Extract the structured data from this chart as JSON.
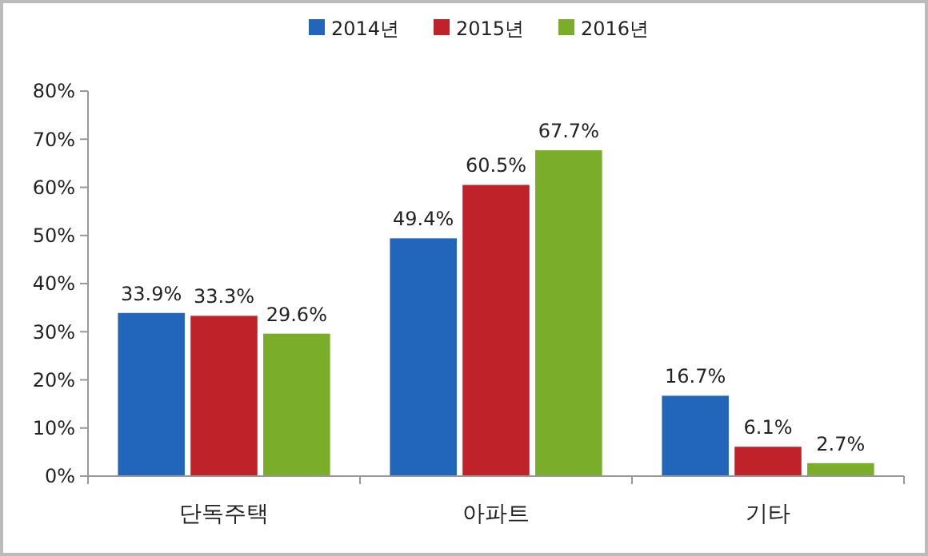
{
  "chart_data": {
    "type": "bar",
    "categories": [
      "단독주택",
      "아파트",
      "기타"
    ],
    "series": [
      {
        "name": "2014년",
        "color": "#2266bb",
        "values": [
          33.9,
          49.4,
          16.7
        ],
        "value_labels": [
          "33.9%",
          "49.4%",
          "16.7%"
        ]
      },
      {
        "name": "2015년",
        "color": "#c0222a",
        "values": [
          33.3,
          60.5,
          6.1
        ],
        "value_labels": [
          "33.3%",
          "60.5%",
          "6.1%"
        ]
      },
      {
        "name": "2016년",
        "color": "#79ad2a",
        "values": [
          29.6,
          67.7,
          2.7
        ],
        "value_labels": [
          "29.6%",
          "67.7%",
          "2.7%"
        ]
      }
    ],
    "ylim": [
      0,
      80
    ],
    "yticks": [
      {
        "value": 0,
        "label": "0%"
      },
      {
        "value": 10,
        "label": "10%"
      },
      {
        "value": 20,
        "label": "20%"
      },
      {
        "value": 30,
        "label": "30%"
      },
      {
        "value": 40,
        "label": "40%"
      },
      {
        "value": 50,
        "label": "50%"
      },
      {
        "value": 60,
        "label": "60%"
      },
      {
        "value": 70,
        "label": "70%"
      },
      {
        "value": 80,
        "label": "80%"
      }
    ],
    "grid": false,
    "legend": "top"
  }
}
